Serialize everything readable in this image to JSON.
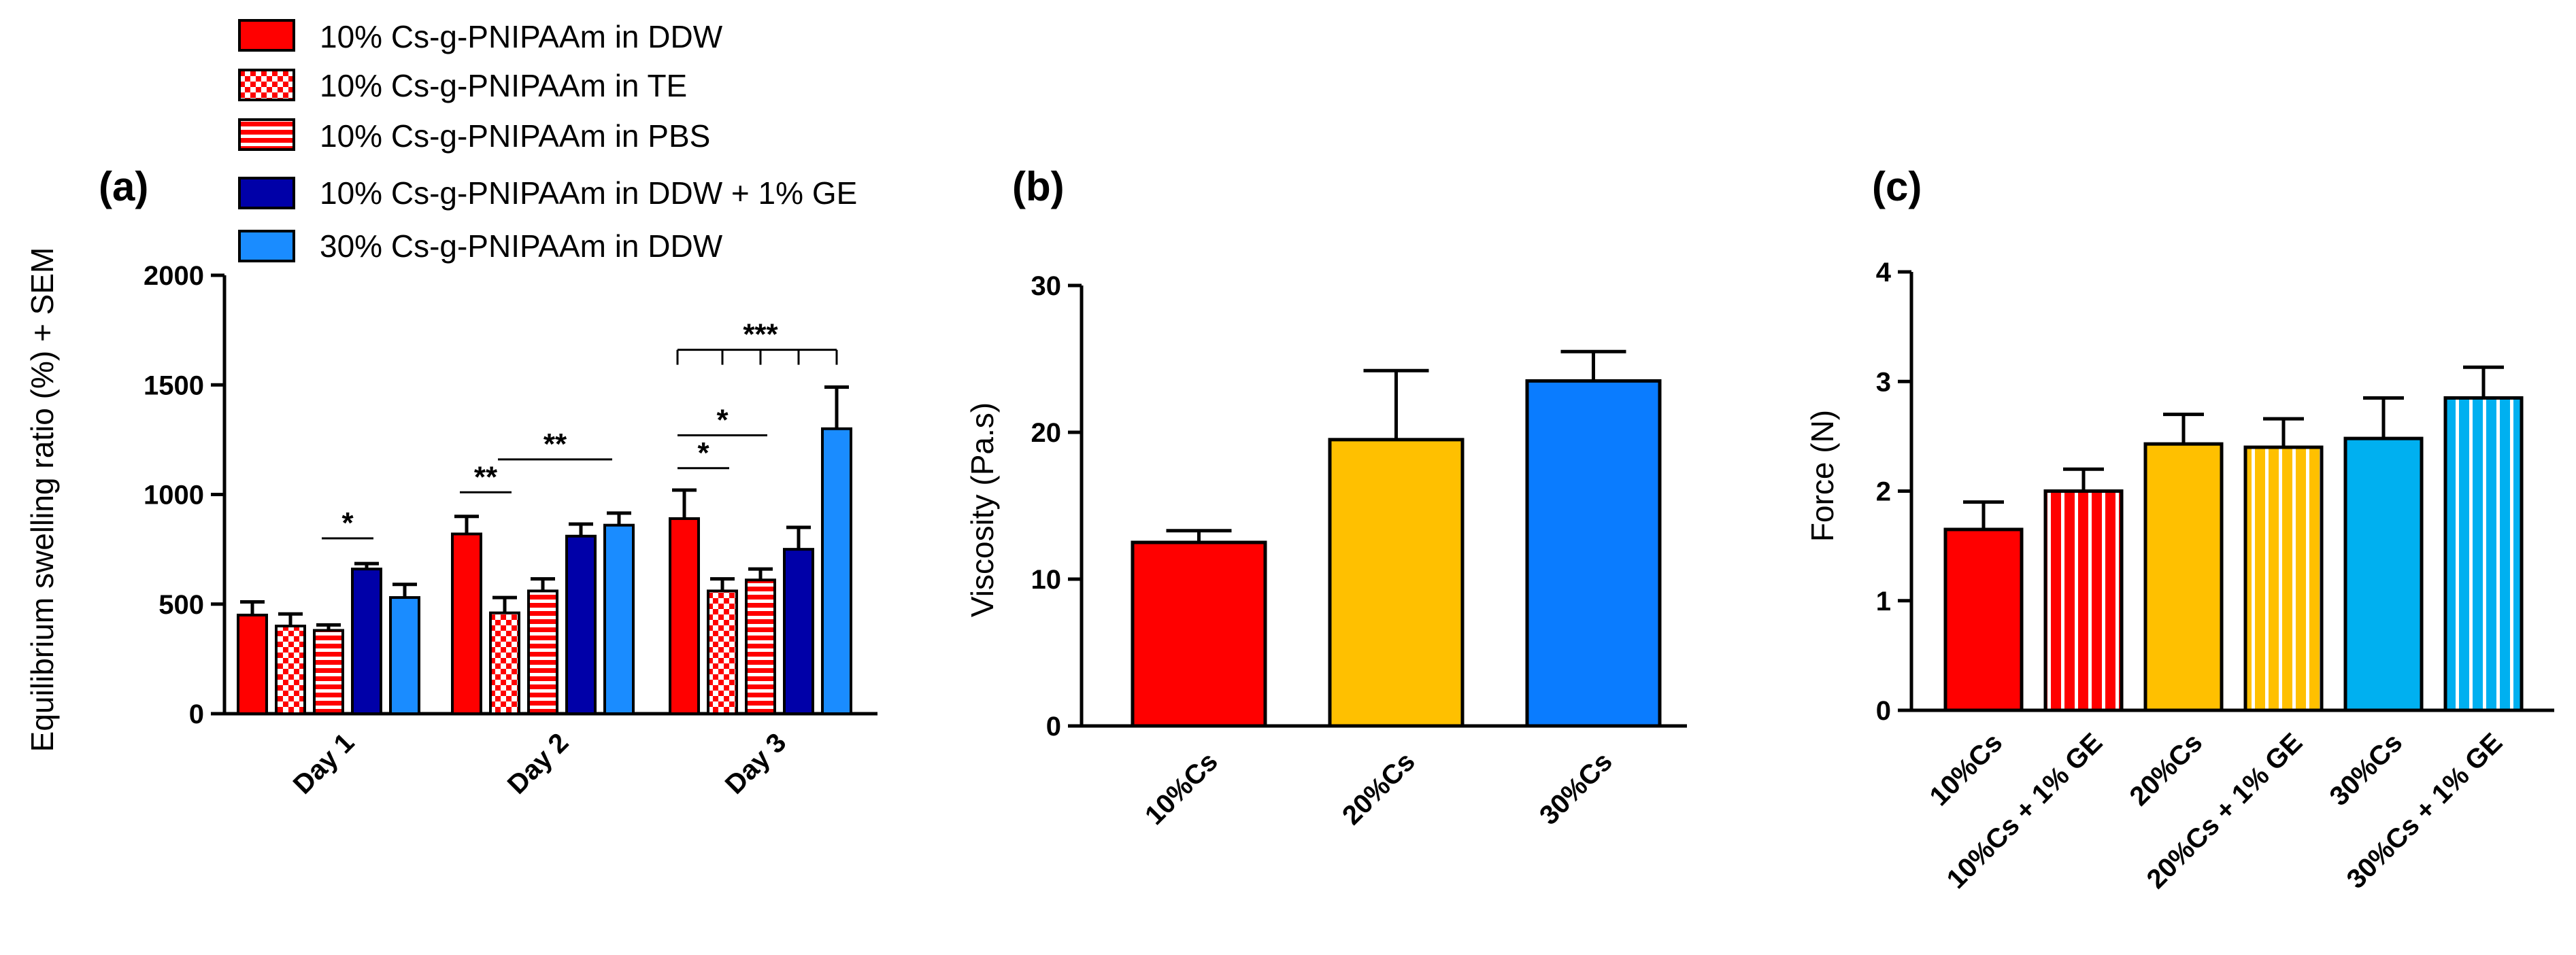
{
  "colors": {
    "red": "#ff0000",
    "dark_blue": "#0000a8",
    "light_blue": "#1a8cff",
    "blue_b": "#0a7cff",
    "orange": "#ffc000",
    "sky": "#00b0f0",
    "axis": "#000000"
  },
  "legend": [
    {
      "label": "10% Cs-g-PNIPAAm in DDW",
      "color": "#ff0000",
      "pattern": "solid"
    },
    {
      "label": "10% Cs-g-PNIPAAm in TE",
      "color": "#ff0000",
      "pattern": "checker"
    },
    {
      "label": "10% Cs-g-PNIPAAm in PBS",
      "color": "#ff0000",
      "pattern": "hstripe"
    },
    {
      "label": "10% Cs-g-PNIPAAm in DDW + 1% GE",
      "color": "#0000a8",
      "pattern": "solid"
    },
    {
      "label": "30% Cs-g-PNIPAAm in DDW",
      "color": "#1a8cff",
      "pattern": "solid"
    }
  ],
  "chart_data": [
    {
      "panel": "(a)",
      "type": "bar",
      "ylabel": "Equilibrium swelling ratio (%) + SEM",
      "xlabel": "",
      "ylim": [
        0,
        2000
      ],
      "yticks": [
        "0",
        "500",
        "1000",
        "1500",
        "2000"
      ],
      "categories": [
        "Day 1",
        "Day 2",
        "Day 3"
      ],
      "series": [
        {
          "name": "10% Cs-g-PNIPAAm in DDW",
          "values": [
            450,
            820,
            890
          ],
          "errors": [
            60,
            80,
            130
          ]
        },
        {
          "name": "10% Cs-g-PNIPAAm in TE",
          "values": [
            400,
            460,
            560
          ],
          "errors": [
            55,
            70,
            55
          ]
        },
        {
          "name": "10% Cs-g-PNIPAAm in PBS",
          "values": [
            380,
            560,
            610
          ],
          "errors": [
            25,
            55,
            50
          ]
        },
        {
          "name": "10% Cs-g-PNIPAAm in DDW + 1% GE",
          "values": [
            660,
            810,
            750
          ],
          "errors": [
            25,
            55,
            100
          ]
        },
        {
          "name": "30% Cs-g-PNIPAAm in DDW",
          "values": [
            530,
            860,
            1300
          ],
          "errors": [
            60,
            55,
            190
          ]
        }
      ],
      "significance": [
        {
          "label": "*",
          "day": 0,
          "from": 2,
          "to": 3
        },
        {
          "label": "**",
          "day": 1,
          "from": 0,
          "to": 1
        },
        {
          "label": "**",
          "day": 1,
          "from": 1,
          "to": 4
        },
        {
          "label": "*",
          "day": 2,
          "from": 0,
          "to": 1
        },
        {
          "label": "*",
          "day": 2,
          "from": 0,
          "to": 2
        },
        {
          "label": "***",
          "day": 2,
          "from": 0,
          "to": 4
        }
      ]
    },
    {
      "panel": "(b)",
      "type": "bar",
      "ylabel": "Viscosity (Pa.s)",
      "xlabel": "",
      "ylim": [
        0,
        30
      ],
      "yticks": [
        "0",
        "10",
        "20",
        "30"
      ],
      "categories": [
        "10%Cs",
        "20%Cs",
        "30%Cs"
      ],
      "values": [
        12.5,
        19.5,
        23.5
      ],
      "errors": [
        0.8,
        4.7,
        2.0
      ],
      "colors": [
        "#ff0000",
        "#ffc000",
        "#0a7cff"
      ]
    },
    {
      "panel": "(c)",
      "type": "bar",
      "ylabel": "Force (N)",
      "xlabel": "",
      "ylim": [
        0,
        4
      ],
      "yticks": [
        "0",
        "1",
        "2",
        "3",
        "4"
      ],
      "categories": [
        "10%Cs",
        "10%Cs + 1% GE",
        "20%Cs",
        "20%Cs + 1% GE",
        "30%Cs",
        "30%Cs + 1% GE"
      ],
      "values": [
        1.65,
        2.0,
        2.43,
        2.4,
        2.48,
        2.85
      ],
      "errors": [
        0.25,
        0.2,
        0.27,
        0.26,
        0.37,
        0.28
      ],
      "colors": [
        "#ff0000",
        "#ff0000",
        "#ffc000",
        "#ffc000",
        "#00b0f0",
        "#00b0f0"
      ],
      "patterns": [
        "solid",
        "vstripe",
        "solid",
        "vstripe",
        "solid",
        "vstripe"
      ]
    }
  ]
}
